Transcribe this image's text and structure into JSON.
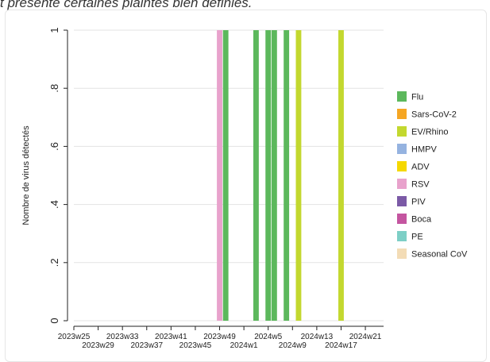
{
  "page": {
    "caption": "t présente certaines plaintes bien définies."
  },
  "chart_data": {
    "type": "bar",
    "ylabel": "Nombre de virus détectés",
    "xlabel": "",
    "ylim": [
      0,
      1
    ],
    "yticks": [
      {
        "value": 0,
        "label": "0"
      },
      {
        "value": 0.2,
        "label": ".2"
      },
      {
        "value": 0.4,
        "label": ".4"
      },
      {
        "value": 0.6,
        "label": ".6"
      },
      {
        "value": 0.8,
        "label": ".8"
      },
      {
        "value": 1,
        "label": "1"
      }
    ],
    "x_domain": [
      0,
      51
    ],
    "xticks": [
      {
        "pos": 0,
        "label": "2023w25",
        "row": 0
      },
      {
        "pos": 4,
        "label": "2023w29",
        "row": 1
      },
      {
        "pos": 8,
        "label": "2023w33",
        "row": 0
      },
      {
        "pos": 12,
        "label": "2023w37",
        "row": 1
      },
      {
        "pos": 16,
        "label": "2023w41",
        "row": 0
      },
      {
        "pos": 20,
        "label": "2023w45",
        "row": 1
      },
      {
        "pos": 24,
        "label": "2023w49",
        "row": 0
      },
      {
        "pos": 28,
        "label": "2024w1",
        "row": 1
      },
      {
        "pos": 32,
        "label": "2024w5",
        "row": 0
      },
      {
        "pos": 36,
        "label": "2024w9",
        "row": 1
      },
      {
        "pos": 40,
        "label": "2024w13",
        "row": 0
      },
      {
        "pos": 44,
        "label": "2024w17",
        "row": 1
      },
      {
        "pos": 48,
        "label": "2024w21",
        "row": 0
      }
    ],
    "bars": [
      {
        "pos": 24,
        "series": "RSV",
        "value": 1
      },
      {
        "pos": 25,
        "series": "Flu",
        "value": 1
      },
      {
        "pos": 30,
        "series": "Flu",
        "value": 1
      },
      {
        "pos": 32,
        "series": "Flu",
        "value": 1
      },
      {
        "pos": 33,
        "series": "Flu",
        "value": 1
      },
      {
        "pos": 35,
        "series": "Flu",
        "value": 1
      },
      {
        "pos": 37,
        "series": "EV/Rhino",
        "value": 1
      },
      {
        "pos": 44,
        "series": "EV/Rhino",
        "value": 1
      }
    ],
    "series": [
      {
        "name": "Flu",
        "color": "#5cb85c"
      },
      {
        "name": "Sars-CoV-2",
        "color": "#f5a623"
      },
      {
        "name": "EV/Rhino",
        "color": "#c3d82f"
      },
      {
        "name": "HMPV",
        "color": "#95b3e0"
      },
      {
        "name": "ADV",
        "color": "#f5d800"
      },
      {
        "name": "RSV",
        "color": "#e8a2cc"
      },
      {
        "name": "PIV",
        "color": "#7b5aa6"
      },
      {
        "name": "Boca",
        "color": "#c455a0"
      },
      {
        "name": "PE",
        "color": "#7dcfc6"
      },
      {
        "name": "Seasonal CoV",
        "color": "#f3dcb6"
      }
    ],
    "grid": true,
    "legend_position": "right"
  }
}
